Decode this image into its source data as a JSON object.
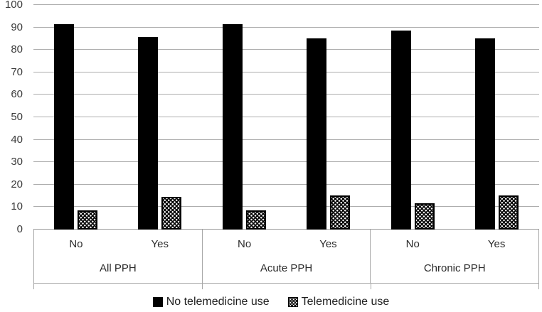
{
  "chart_data": {
    "type": "bar",
    "title": "",
    "xlabel": "",
    "ylabel": "",
    "ylim": [
      0,
      100
    ],
    "ytick_interval": 10,
    "yticks": [
      0,
      10,
      20,
      30,
      40,
      50,
      60,
      70,
      80,
      90,
      100
    ],
    "grid": true,
    "legend_position": "bottom",
    "groups": [
      {
        "label": "All PPH",
        "categories": [
          "No",
          "Yes"
        ]
      },
      {
        "label": "Acute PPH",
        "categories": [
          "No",
          "Yes"
        ]
      },
      {
        "label": "Chronic PPH",
        "categories": [
          "No",
          "Yes"
        ]
      }
    ],
    "series": [
      {
        "name": "No telemedicine use",
        "style": "solid-black",
        "values": [
          91.5,
          85.7,
          91.5,
          85.1,
          88.7,
          85.1
        ]
      },
      {
        "name": "Telemedicine use",
        "style": "white-dots-on-black-pattern",
        "values": [
          8.6,
          14.6,
          8.6,
          15.2,
          11.7,
          15.2
        ]
      }
    ]
  },
  "legend": {
    "items": [
      {
        "label": "No telemedicine use",
        "swatch": "solid-black-square"
      },
      {
        "label": "Telemedicine use",
        "swatch": "dotted-pattern-square"
      }
    ]
  },
  "colors": {
    "bar_fill": "#000000",
    "gridline": "#adadad",
    "axis_border": "#a6a6a6",
    "text": "#2b2b2b",
    "background": "#ffffff"
  }
}
